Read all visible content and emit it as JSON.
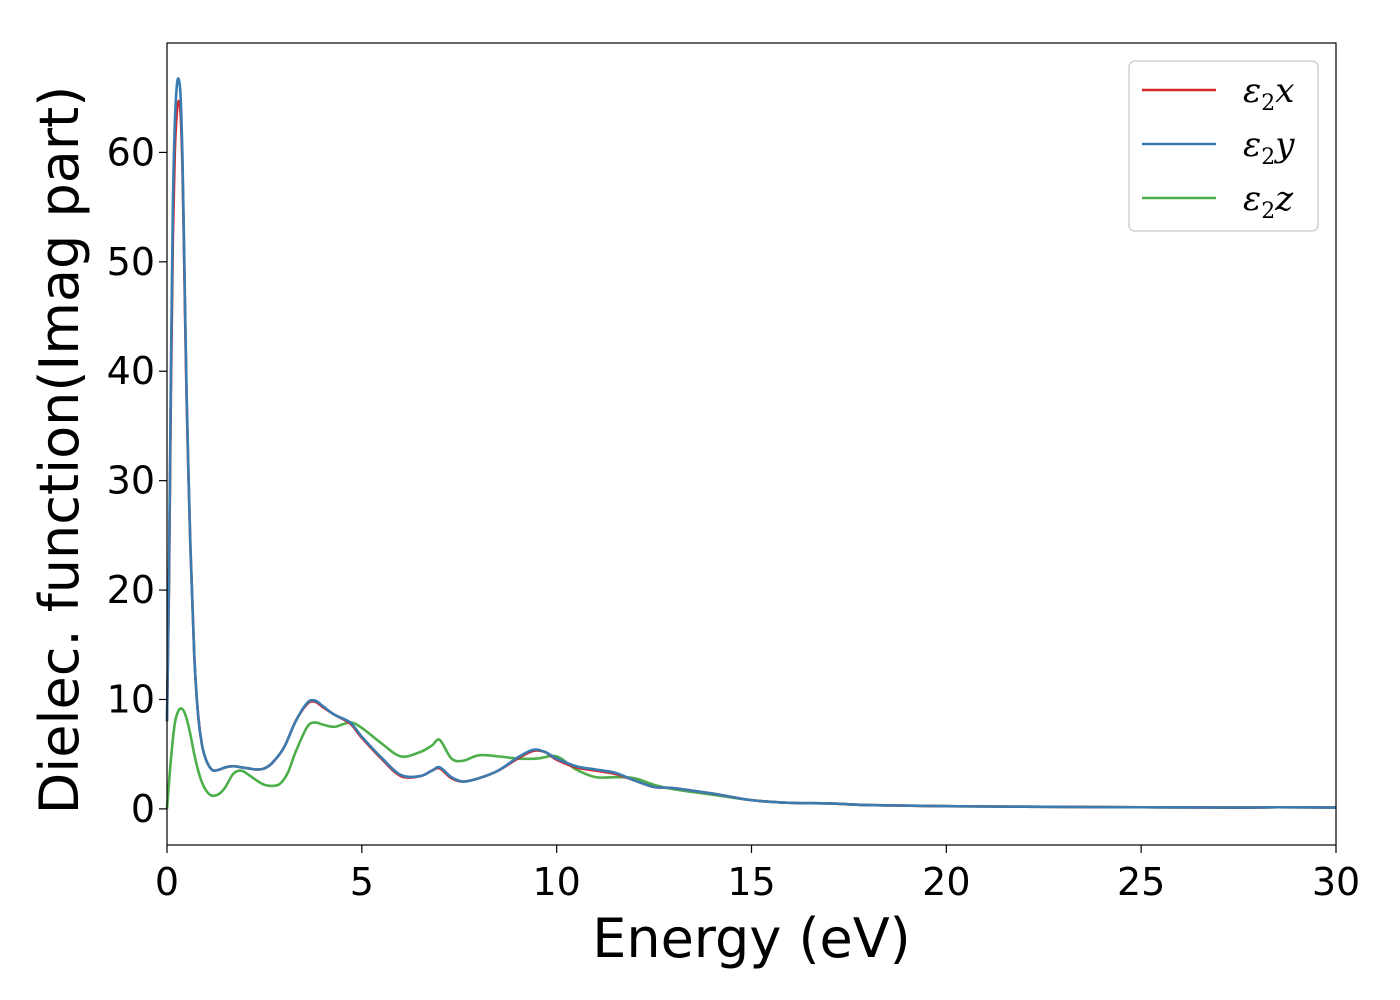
{
  "chart_data": {
    "type": "line",
    "title": "",
    "xlabel": "Energy (eV)",
    "ylabel": "Dielec. function(Imag part)",
    "xlim": [
      0,
      30
    ],
    "ylim": [
      -3.3,
      70
    ],
    "xticks": [
      0,
      5,
      10,
      15,
      20,
      25,
      30
    ],
    "xtick_labels": [
      "0",
      "5",
      "10",
      "15",
      "20",
      "25",
      "30"
    ],
    "yticks": [
      0,
      10,
      20,
      30,
      40,
      50,
      60
    ],
    "ytick_labels": [
      "0",
      "10",
      "20",
      "30",
      "40",
      "50",
      "60"
    ],
    "grid": false,
    "legend_position": "top-right",
    "series": [
      {
        "name": "ε2x",
        "legend": {
          "base": "ε",
          "sub": "2",
          "suffix": "x"
        },
        "color": "#d62728",
        "x": [
          0,
          0.05,
          0.1,
          0.15,
          0.2,
          0.25,
          0.3,
          0.35,
          0.4,
          0.45,
          0.5,
          0.6,
          0.7,
          0.8,
          0.9,
          1.0,
          1.1,
          1.2,
          1.35,
          1.5,
          1.7,
          1.9,
          2.1,
          2.3,
          2.5,
          2.7,
          3.0,
          3.3,
          3.6,
          3.8,
          4.0,
          4.3,
          4.7,
          5.0,
          5.5,
          6.0,
          6.5,
          6.8,
          7.0,
          7.3,
          7.6,
          8.0,
          8.5,
          9.0,
          9.4,
          9.7,
          10.0,
          10.5,
          11.0,
          11.5,
          12.0,
          12.5,
          13.0,
          14.0,
          15.0,
          16.0,
          17.0,
          18.0,
          20.0,
          22.0,
          25.0,
          27.5,
          28.5,
          30.0
        ],
        "y": [
          8,
          20,
          38,
          52,
          60,
          63.5,
          64.7,
          63.5,
          58,
          48,
          38,
          24,
          14,
          8.5,
          5.8,
          4.5,
          3.8,
          3.5,
          3.6,
          3.8,
          3.9,
          3.8,
          3.7,
          3.6,
          3.7,
          4.2,
          5.6,
          8,
          9.6,
          9.8,
          9.3,
          8.6,
          7.8,
          6.5,
          4.6,
          3.0,
          3.0,
          3.5,
          3.7,
          2.8,
          2.5,
          2.8,
          3.5,
          4.6,
          5.3,
          5.2,
          4.5,
          3.8,
          3.5,
          3.2,
          2.6,
          2.0,
          1.9,
          1.4,
          0.8,
          0.55,
          0.5,
          0.35,
          0.25,
          0.2,
          0.15,
          0.12,
          0.15,
          0.12
        ]
      },
      {
        "name": "ε2y",
        "legend": {
          "base": "ε",
          "sub": "2",
          "suffix": "y"
        },
        "color": "#3a7bb0",
        "x": [
          0,
          0.05,
          0.1,
          0.15,
          0.2,
          0.25,
          0.3,
          0.35,
          0.4,
          0.45,
          0.5,
          0.6,
          0.7,
          0.8,
          0.9,
          1.0,
          1.1,
          1.2,
          1.35,
          1.5,
          1.7,
          1.9,
          2.1,
          2.3,
          2.5,
          2.7,
          3.0,
          3.3,
          3.6,
          3.8,
          4.0,
          4.3,
          4.7,
          5.0,
          5.5,
          6.0,
          6.5,
          6.8,
          7.0,
          7.3,
          7.6,
          8.0,
          8.5,
          9.0,
          9.4,
          9.7,
          10.0,
          10.5,
          11.0,
          11.5,
          12.0,
          12.5,
          13.0,
          14.0,
          15.0,
          16.0,
          17.0,
          18.0,
          20.0,
          22.0,
          25.0,
          27.5,
          28.5,
          30.0
        ],
        "y": [
          8,
          21,
          40,
          55,
          62.5,
          66,
          66.7,
          65,
          59,
          49,
          38.5,
          24,
          14,
          8.5,
          5.8,
          4.5,
          3.8,
          3.5,
          3.6,
          3.8,
          3.9,
          3.8,
          3.7,
          3.6,
          3.7,
          4.2,
          5.6,
          8,
          9.7,
          9.9,
          9.4,
          8.6,
          7.9,
          6.6,
          4.7,
          3.1,
          3.0,
          3.5,
          3.8,
          2.9,
          2.5,
          2.8,
          3.5,
          4.7,
          5.4,
          5.2,
          4.6,
          3.9,
          3.6,
          3.3,
          2.6,
          2.0,
          1.9,
          1.4,
          0.8,
          0.55,
          0.5,
          0.35,
          0.25,
          0.2,
          0.15,
          0.12,
          0.15,
          0.12
        ]
      },
      {
        "name": "ε2z",
        "legend": {
          "base": "ε",
          "sub": "2",
          "suffix": "z"
        },
        "color": "#4daf4a",
        "x": [
          0,
          0.1,
          0.2,
          0.3,
          0.4,
          0.5,
          0.6,
          0.7,
          0.8,
          0.9,
          1.0,
          1.1,
          1.2,
          1.35,
          1.5,
          1.7,
          1.9,
          2.1,
          2.3,
          2.5,
          2.7,
          2.9,
          3.1,
          3.3,
          3.6,
          3.8,
          4.0,
          4.3,
          4.7,
          5.0,
          5.5,
          6.0,
          6.5,
          6.8,
          7.0,
          7.3,
          7.6,
          8.0,
          8.5,
          9.0,
          9.5,
          10.0,
          10.5,
          11.0,
          11.5,
          12.0,
          12.5,
          13.0,
          14.0,
          15.0,
          16.0,
          17.0,
          18.0,
          20.0,
          22.0,
          25.0,
          27.5,
          28.5,
          30.0
        ],
        "y": [
          0,
          4.5,
          7.8,
          9.0,
          9.1,
          8.3,
          6.8,
          5.0,
          3.5,
          2.4,
          1.7,
          1.3,
          1.2,
          1.4,
          2.0,
          3.2,
          3.5,
          3.1,
          2.6,
          2.2,
          2.1,
          2.3,
          3.3,
          5.2,
          7.5,
          7.9,
          7.7,
          7.5,
          7.9,
          7.4,
          6.0,
          4.8,
          5.2,
          5.8,
          6.3,
          4.6,
          4.4,
          4.9,
          4.8,
          4.6,
          4.6,
          4.8,
          3.6,
          2.9,
          2.9,
          2.8,
          2.2,
          1.8,
          1.3,
          0.8,
          0.55,
          0.5,
          0.35,
          0.25,
          0.2,
          0.15,
          0.12,
          0.15,
          0.12
        ]
      }
    ]
  }
}
